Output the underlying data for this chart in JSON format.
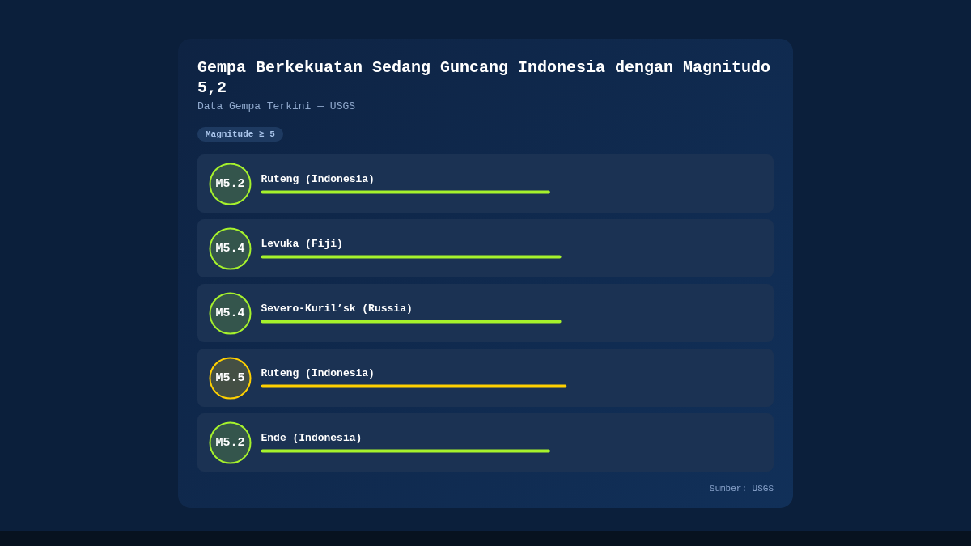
{
  "chart_data": {
    "type": "bar",
    "orientation": "horizontal",
    "title": "Gempa Berkekuatan Sedang Guncang Indonesia dengan Magnitudo 5,2",
    "subtitle": "Data Gempa Terkini — USGS",
    "categories": [
      "Ruteng (Indonesia)",
      "Levuka (Fiji)",
      "Severo-Kuril’sk (Russia)",
      "Ruteng (Indonesia)",
      "Ende (Indonesia)"
    ],
    "values": [
      5.2,
      5.4,
      5.4,
      5.5,
      5.2
    ],
    "value_labels": [
      "M5.2",
      "M5.4",
      "M5.4",
      "M5.5",
      "M5.2"
    ],
    "colors": [
      "#a6f22c",
      "#a6f22c",
      "#a6f22c",
      "#ffd000",
      "#a6f22c"
    ],
    "tick_labels": false,
    "annotations": [
      "Magnitude ≥ 5",
      "Sumber: USGS"
    ]
  }
}
